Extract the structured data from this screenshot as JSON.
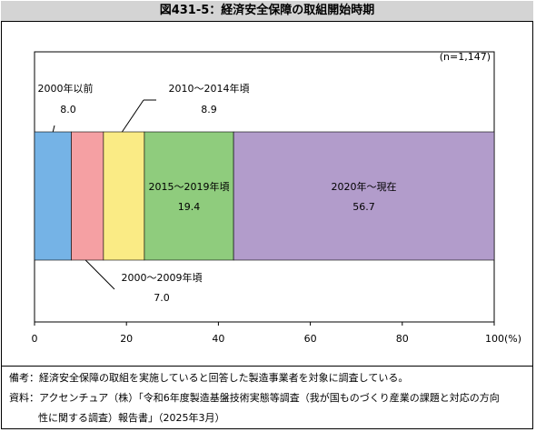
{
  "title": "図431-5：経済安全保障の取組開始時期",
  "chart_data": {
    "type": "bar",
    "orientation": "horizontal",
    "stacked": true,
    "sample_label": "(n=1,147)",
    "categories": [
      "2000年以前",
      "2000～2009年頃",
      "2010～2014年頃",
      "2015～2019年頃",
      "2020年～現在"
    ],
    "series": [
      {
        "name": "2000年以前",
        "value": 8.0,
        "value_label": "8.0",
        "color": "#75b3e6"
      },
      {
        "name": "2000～2009年頃",
        "value": 7.0,
        "value_label": "7.0",
        "color": "#f5a0a3"
      },
      {
        "name": "2010～2014年頃",
        "value": 8.9,
        "value_label": "8.9",
        "color": "#faeb85"
      },
      {
        "name": "2015～2019年頃",
        "value": 19.4,
        "value_label": "19.4",
        "color": "#8fcc7d"
      },
      {
        "name": "2020年～現在",
        "value": 56.7,
        "value_label": "56.7",
        "color": "#b29ccb"
      }
    ],
    "xlim": [
      0,
      100
    ],
    "x_ticks": [
      0,
      20,
      40,
      60,
      80,
      100
    ],
    "x_tick_labels": [
      "0",
      "20",
      "40",
      "60",
      "80",
      "100(%)"
    ],
    "grid": false
  },
  "notes": {
    "note1": "備考：経済安全保障の取組を実施していると回答した製造事業者を対象に調査している。",
    "note2": "資料：アクセンチュア（株）「令和6年度製造基盤技術実態等調査（我が国ものづくり産業の課題と対応の方向",
    "note3": "性に関する調査）報告書」（2025年3月）"
  }
}
